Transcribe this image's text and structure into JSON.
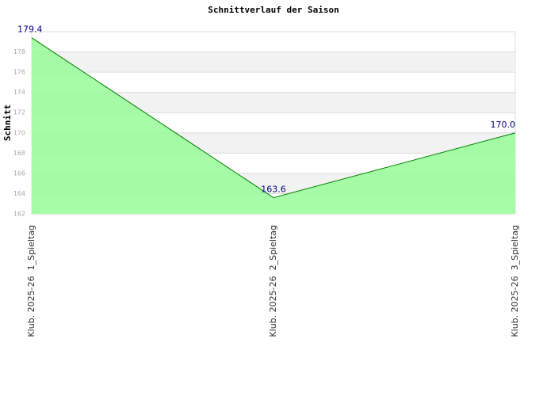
{
  "chart_data": {
    "type": "area",
    "title": "Schnittverlauf der Saison",
    "y_label": "Schnitt",
    "categories": [
      "Klub. 2025-26  1_Spieltag",
      "Klub. 2025-26  2_Spieltag",
      "Klub. 2025-26  3_Spieltag"
    ],
    "values": [
      179.4,
      163.6,
      170.0
    ],
    "value_labels": [
      "179.4",
      "163.6",
      "170.0"
    ],
    "color": "#98fb98",
    "line_color": "#008000",
    "label_color": "#000080",
    "ylim": [
      162,
      180
    ],
    "yticks": [
      162,
      164,
      166,
      168,
      170,
      172,
      174,
      176,
      178
    ],
    "grid": true
  }
}
